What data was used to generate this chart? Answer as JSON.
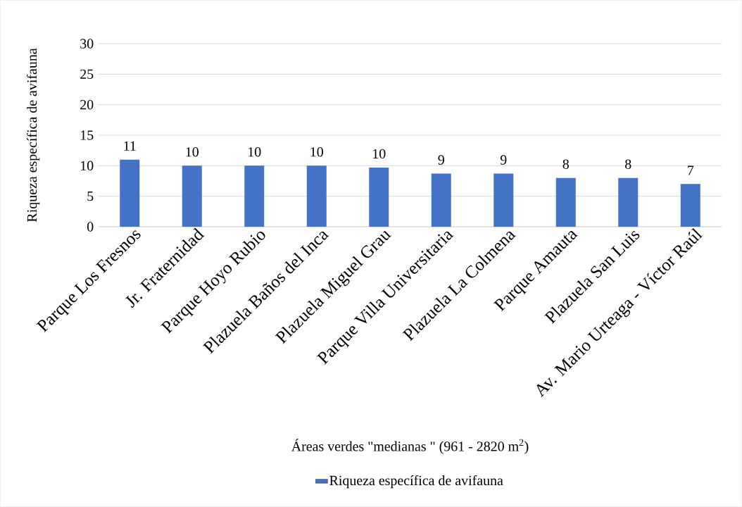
{
  "chart_data": {
    "type": "bar",
    "xlabel": "Áreas verdes \"medianas \" (961 - 2820 m$^{2}$)",
    "ylabel": "Riqueza específica de avifauna",
    "categories": [
      "Parque Los Fresnos",
      "Jr. Fraternidad",
      "Parque Hoyo Rubio",
      "Plazuela Baños del Inca",
      "Plazuela Miguel Grau",
      "Parque Villa Universitaria",
      "Plazuela La Colmena",
      "Parque Amauta",
      "Plazuela San Luis",
      "Av. Mario Urteaga - Víctor Raúl"
    ],
    "series": [
      {
        "name": "Riqueza específica de avifauna",
        "color": "#4472c4",
        "values": [
          11,
          10,
          10,
          10,
          9.7,
          8.7,
          8.7,
          8,
          8,
          7
        ],
        "value_labels": [
          "11",
          "10",
          "10",
          "10",
          "10",
          "9",
          "9",
          "8",
          "8",
          "7"
        ]
      }
    ],
    "ylim": [
      0,
      30
    ],
    "yticks": [
      0,
      5,
      10,
      15,
      20,
      25,
      30
    ],
    "grid": "y",
    "legend": "bottom"
  }
}
